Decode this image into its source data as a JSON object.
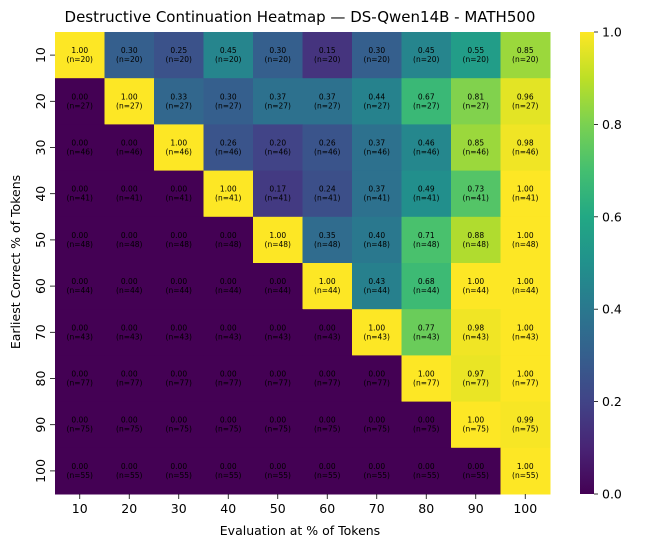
{
  "chart_data": {
    "type": "heatmap",
    "title": "Destructive Continuation Heatmap — DS-Qwen14B - MATH500",
    "xlabel": "Evaluation at % of Tokens",
    "ylabel": "Earliest Correct % of Tokens",
    "x_categories": [
      "10",
      "20",
      "30",
      "40",
      "50",
      "60",
      "70",
      "80",
      "90",
      "100"
    ],
    "y_categories": [
      "10",
      "20",
      "30",
      "40",
      "50",
      "60",
      "70",
      "80",
      "90",
      "100"
    ],
    "row_counts": [
      20,
      27,
      46,
      41,
      48,
      44,
      43,
      77,
      75,
      55
    ],
    "values": [
      [
        1.0,
        0.3,
        0.25,
        0.45,
        0.3,
        0.15,
        0.3,
        0.45,
        0.55,
        0.85
      ],
      [
        0.0,
        1.0,
        0.33,
        0.3,
        0.37,
        0.37,
        0.44,
        0.67,
        0.81,
        0.96
      ],
      [
        0.0,
        0.0,
        1.0,
        0.26,
        0.2,
        0.26,
        0.37,
        0.46,
        0.85,
        0.98
      ],
      [
        0.0,
        0.0,
        0.0,
        1.0,
        0.17,
        0.24,
        0.37,
        0.49,
        0.73,
        1.0
      ],
      [
        0.0,
        0.0,
        0.0,
        0.0,
        1.0,
        0.35,
        0.4,
        0.71,
        0.88,
        1.0
      ],
      [
        0.0,
        0.0,
        0.0,
        0.0,
        0.0,
        1.0,
        0.43,
        0.68,
        1.0,
        1.0
      ],
      [
        0.0,
        0.0,
        0.0,
        0.0,
        0.0,
        0.0,
        1.0,
        0.77,
        0.98,
        1.0
      ],
      [
        0.0,
        0.0,
        0.0,
        0.0,
        0.0,
        0.0,
        0.0,
        1.0,
        0.97,
        1.0
      ],
      [
        0.0,
        0.0,
        0.0,
        0.0,
        0.0,
        0.0,
        0.0,
        0.0,
        1.0,
        0.99
      ],
      [
        0.0,
        0.0,
        0.0,
        0.0,
        0.0,
        0.0,
        0.0,
        0.0,
        0.0,
        1.0
      ]
    ],
    "colormap": "viridis",
    "vmin": 0.0,
    "vmax": 1.0,
    "colorbar_ticks": [
      "0.0",
      "0.2",
      "0.4",
      "0.6",
      "0.8",
      "1.0"
    ]
  }
}
